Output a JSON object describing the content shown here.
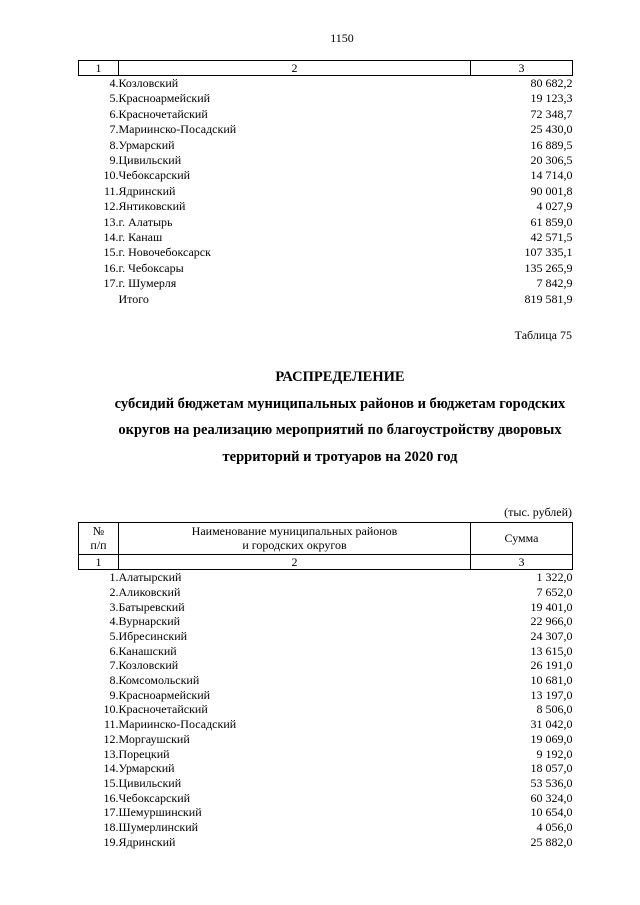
{
  "page": {
    "number": "1150"
  },
  "table1": {
    "column_numbers": [
      "1",
      "2",
      "3"
    ],
    "rows": [
      {
        "num": "4.",
        "name": "Козловский",
        "value": "80 682,2"
      },
      {
        "num": "5.",
        "name": "Красноармейский",
        "value": "19 123,3"
      },
      {
        "num": "6.",
        "name": "Красночетайский",
        "value": "72 348,7"
      },
      {
        "num": "7.",
        "name": "Мариинско-Посадский",
        "value": "25 430,0"
      },
      {
        "num": "8.",
        "name": "Урмарский",
        "value": "16 889,5"
      },
      {
        "num": "9.",
        "name": "Цивильский",
        "value": "20 306,5"
      },
      {
        "num": "10.",
        "name": "Чебоксарский",
        "value": "14 714,0"
      },
      {
        "num": "11.",
        "name": "Ядринский",
        "value": "90 001,8"
      },
      {
        "num": "12.",
        "name": "Янтиковский",
        "value": "4 027,9"
      },
      {
        "num": "13.",
        "name": "г. Алатырь",
        "value": "61 859,0"
      },
      {
        "num": "14.",
        "name": "г. Канаш",
        "value": "42 571,5"
      },
      {
        "num": "15.",
        "name": "г. Новочебоксарск",
        "value": "107 335,1"
      },
      {
        "num": "16.",
        "name": "г. Чебоксары",
        "value": "135 265,9"
      },
      {
        "num": "17.",
        "name": "г. Шумерля",
        "value": "7 842,9"
      },
      {
        "num": "",
        "name": "Итого",
        "value": "819 581,9"
      }
    ]
  },
  "caption": "Таблица 75",
  "heading": {
    "title": "РАСПРЕДЕЛЕНИЕ",
    "subtitle_lines": [
      "субсидий бюджетам муниципальных районов и бюджетам городских",
      "округов на реализацию мероприятий по благоустройству дворовых",
      "территорий и тротуаров на 2020 год"
    ]
  },
  "units_note": "(тыс. рублей)",
  "table2": {
    "header": {
      "num_lines": [
        "№",
        "п/п"
      ],
      "name_lines": [
        "Наименование муниципальных районов",
        "и городских округов"
      ],
      "sum": "Сумма"
    },
    "column_numbers": [
      "1",
      "2",
      "3"
    ],
    "rows": [
      {
        "num": "1.",
        "name": "Алатырский",
        "value": "1 322,0"
      },
      {
        "num": "2.",
        "name": "Аликовский",
        "value": "7 652,0"
      },
      {
        "num": "3.",
        "name": "Батыревский",
        "value": "19 401,0"
      },
      {
        "num": "4.",
        "name": "Вурнарский",
        "value": "22 966,0"
      },
      {
        "num": "5.",
        "name": "Ибресинский",
        "value": "24 307,0"
      },
      {
        "num": "6.",
        "name": "Канашский",
        "value": "13 615,0"
      },
      {
        "num": "7.",
        "name": "Козловский",
        "value": "26 191,0"
      },
      {
        "num": "8.",
        "name": "Комсомольский",
        "value": "10 681,0"
      },
      {
        "num": "9.",
        "name": "Красноармейский",
        "value": "13 197,0"
      },
      {
        "num": "10.",
        "name": "Красночетайский",
        "value": "8 506,0"
      },
      {
        "num": "11.",
        "name": "Мариинско-Посадский",
        "value": "31 042,0"
      },
      {
        "num": "12.",
        "name": "Моргаушский",
        "value": "19 069,0"
      },
      {
        "num": "13.",
        "name": "Порецкий",
        "value": "9 192,0"
      },
      {
        "num": "14.",
        "name": "Урмарский",
        "value": "18 057,0"
      },
      {
        "num": "15.",
        "name": "Цивильский",
        "value": "53 536,0"
      },
      {
        "num": "16.",
        "name": "Чебоксарский",
        "value": "60 324,0"
      },
      {
        "num": "17.",
        "name": "Шемуршинский",
        "value": "10 654,0"
      },
      {
        "num": "18.",
        "name": "Шумерлинский",
        "value": "4 056,0"
      },
      {
        "num": "19.",
        "name": "Ядринский",
        "value": "25 882,0"
      }
    ]
  }
}
